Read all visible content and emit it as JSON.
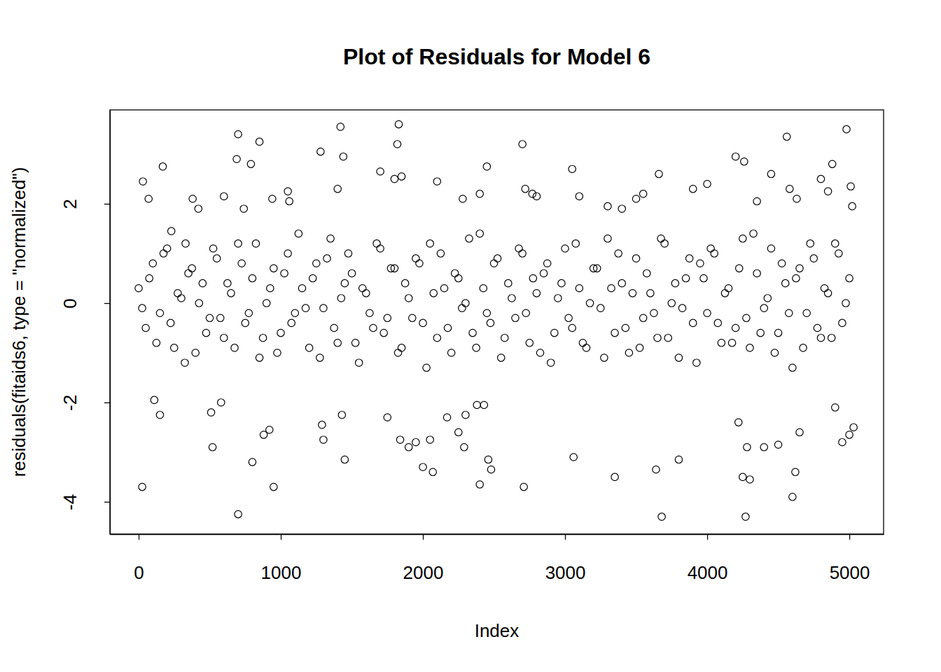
{
  "chart_data": {
    "type": "scatter",
    "title": "Plot of Residuals for Model 6",
    "x_label": "Index",
    "y_label": "residuals(fitaids6, type = \"normalized\")",
    "color": "#000000",
    "marker": "circle-open",
    "xlim": [
      -202,
      5241
    ],
    "ylim": [
      -4.65,
      3.89
    ],
    "xticks": [
      0,
      1000,
      2000,
      3000,
      4000,
      5000
    ],
    "yticks": [
      -4,
      -2,
      0,
      2
    ],
    "x": [
      25,
      30,
      70,
      110,
      150,
      170,
      230,
      330,
      380,
      420,
      510,
      520,
      580,
      600,
      690,
      700,
      700,
      740,
      790,
      800,
      850,
      880,
      920,
      940,
      950,
      1050,
      1060,
      1280,
      1290,
      1300,
      1400,
      1420,
      1430,
      1440,
      1450,
      1700,
      1750,
      1800,
      1820,
      1830,
      1840,
      1850,
      1900,
      1950,
      2000,
      2050,
      2070,
      2100,
      2170,
      2250,
      2280,
      2290,
      2300,
      2380,
      2400,
      2400,
      2430,
      2450,
      2460,
      2480,
      2700,
      2710,
      2720,
      2770,
      2800,
      3050,
      3060,
      3100,
      3300,
      3350,
      3400,
      3500,
      3550,
      3640,
      3660,
      3680,
      3800,
      3900,
      4000,
      4200,
      4220,
      4250,
      4260,
      4270,
      4280,
      4300,
      4350,
      4400,
      4450,
      4500,
      4560,
      4580,
      4600,
      4620,
      4630,
      4650,
      4800,
      4850,
      4880,
      4900,
      4950,
      4980,
      5000,
      5010,
      5020,
      5030,
      0,
      50,
      100,
      150,
      200,
      250,
      300,
      350,
      400,
      450,
      500,
      550,
      600,
      650,
      700,
      750,
      800,
      850,
      900,
      950,
      1000,
      1050,
      1100,
      1150,
      1200,
      1250,
      1300,
      1350,
      1400,
      1450,
      1500,
      1550,
      1600,
      1650,
      1700,
      1750,
      1800,
      1850,
      1900,
      1950,
      2000,
      2050,
      2100,
      2150,
      2200,
      2250,
      2300,
      2350,
      2400,
      2450,
      2500,
      2550,
      2600,
      2650,
      2700,
      2750,
      2800,
      2850,
      2900,
      2950,
      3000,
      3050,
      3100,
      3150,
      3200,
      3250,
      3300,
      3350,
      3400,
      3450,
      3500,
      3550,
      3600,
      3650,
      3700,
      3750,
      3800,
      3850,
      3900,
      3950,
      4000,
      4050,
      4100,
      4150,
      4200,
      4250,
      4300,
      4350,
      4400,
      4450,
      4500,
      4550,
      4600,
      4650,
      4700,
      4750,
      4800,
      4850,
      4900,
      4950,
      5000,
      25,
      75,
      125,
      175,
      225,
      275,
      325,
      375,
      425,
      475,
      525,
      575,
      625,
      675,
      725,
      775,
      825,
      875,
      925,
      975,
      1025,
      1075,
      1125,
      1175,
      1225,
      1275,
      1325,
      1375,
      1425,
      1475,
      1525,
      1575,
      1625,
      1675,
      1725,
      1775,
      1825,
      1875,
      1925,
      1975,
      2025,
      2075,
      2125,
      2175,
      2225,
      2275,
      2325,
      2375,
      2425,
      2475,
      2525,
      2575,
      2625,
      2675,
      2725,
      2775,
      2825,
      2875,
      2925,
      2975,
      3025,
      3075,
      3125,
      3175,
      3225,
      3275,
      3325,
      3375,
      3425,
      3475,
      3525,
      3575,
      3625,
      3675,
      3725,
      3775,
      3825,
      3875,
      3925,
      3975,
      4025,
      4075,
      4125,
      4175,
      4225,
      4275,
      4325,
      4375,
      4425,
      4475,
      4525,
      4575,
      4625,
      4675,
      4725,
      4775,
      4825,
      4875,
      4925,
      4975
    ],
    "values": [
      -3.7,
      2.45,
      2.1,
      -1.95,
      -2.25,
      2.75,
      1.45,
      1.2,
      2.1,
      1.9,
      -2.2,
      -2.9,
      -2.0,
      2.15,
      2.9,
      3.4,
      -4.25,
      1.9,
      2.8,
      -3.2,
      3.25,
      -2.65,
      -2.55,
      2.1,
      -3.7,
      2.25,
      2.05,
      3.05,
      -2.45,
      -2.75,
      2.3,
      3.55,
      -2.25,
      2.95,
      -3.15,
      2.65,
      -2.3,
      2.5,
      3.2,
      3.6,
      -2.75,
      2.55,
      -2.9,
      -2.8,
      -3.3,
      -2.75,
      -3.4,
      2.45,
      -2.3,
      -2.6,
      2.1,
      -2.9,
      -2.25,
      -2.05,
      -3.65,
      2.2,
      -2.05,
      2.75,
      -3.15,
      -3.35,
      3.2,
      -3.7,
      2.3,
      2.2,
      2.15,
      2.7,
      -3.1,
      2.15,
      1.95,
      -3.5,
      1.9,
      2.1,
      2.2,
      -3.35,
      2.6,
      -4.3,
      -3.15,
      2.3,
      2.4,
      2.95,
      -2.4,
      -3.5,
      2.85,
      -4.3,
      -2.9,
      -3.55,
      2.05,
      -2.9,
      2.6,
      -2.85,
      3.35,
      2.3,
      -3.9,
      -3.4,
      2.1,
      -2.6,
      2.5,
      2.25,
      2.8,
      -2.1,
      -2.8,
      3.5,
      -2.65,
      2.35,
      1.95,
      -2.5,
      0.3,
      -0.5,
      0.8,
      -0.2,
      1.1,
      -0.9,
      0.1,
      0.6,
      -1.0,
      0.4,
      -0.3,
      0.9,
      -0.7,
      0.2,
      1.2,
      -0.4,
      0.5,
      -1.1,
      0.0,
      0.7,
      -0.6,
      1.0,
      -0.2,
      0.3,
      -0.9,
      0.8,
      -0.1,
      1.3,
      -0.8,
      0.4,
      0.6,
      -1.2,
      0.2,
      -0.5,
      1.1,
      -0.3,
      0.7,
      -0.9,
      0.1,
      0.9,
      -0.4,
      1.2,
      -0.7,
      0.3,
      -1.0,
      0.5,
      0.0,
      -0.6,
      1.4,
      -0.2,
      0.8,
      -1.1,
      0.4,
      -0.3,
      1.0,
      -0.8,
      0.2,
      0.6,
      -1.2,
      0.1,
      1.1,
      -0.5,
      0.3,
      -0.9,
      0.7,
      -0.1,
      1.3,
      -0.6,
      0.4,
      -1.0,
      0.9,
      -0.3,
      0.2,
      -0.7,
      1.2,
      0.0,
      -1.1,
      0.5,
      -0.4,
      0.8,
      -0.2,
      1.0,
      -0.8,
      0.3,
      -0.5,
      1.3,
      -0.9,
      0.6,
      -0.1,
      1.1,
      -0.6,
      0.4,
      -1.3,
      0.7,
      -0.2,
      0.9,
      -0.7,
      0.2,
      1.2,
      -0.4,
      0.5,
      -0.1,
      0.5,
      -0.8,
      1.0,
      -0.4,
      0.2,
      -1.2,
      0.7,
      0.0,
      -0.6,
      1.1,
      -0.3,
      0.4,
      -0.9,
      0.8,
      -0.2,
      1.2,
      -0.7,
      0.3,
      -1.0,
      0.6,
      -0.4,
      1.4,
      -0.1,
      0.5,
      -1.1,
      0.9,
      -0.5,
      0.1,
      1.0,
      -0.8,
      0.3,
      -0.2,
      1.2,
      -0.6,
      0.7,
      -1.0,
      0.4,
      -0.3,
      0.8,
      -1.3,
      0.2,
      1.0,
      -0.5,
      0.6,
      -0.1,
      1.3,
      -0.9,
      0.3,
      -0.4,
      0.9,
      -0.7,
      0.1,
      1.1,
      -0.2,
      0.5,
      -1.0,
      0.8,
      -0.6,
      0.4,
      -0.3,
      1.2,
      -0.8,
      0.0,
      0.7,
      -1.1,
      0.3,
      1.0,
      -0.5,
      0.2,
      -0.9,
      0.6,
      -0.2,
      1.3,
      -0.7,
      0.4,
      -0.1,
      0.9,
      -1.2,
      0.5,
      1.1,
      -0.4,
      0.2,
      -0.8,
      0.7,
      -0.3,
      1.4,
      -0.6,
      0.1,
      -1.0,
      0.8,
      -0.2,
      0.5,
      -0.9,
      1.2,
      -0.5,
      0.3,
      -0.7,
      1.0,
      0.0
    ]
  }
}
